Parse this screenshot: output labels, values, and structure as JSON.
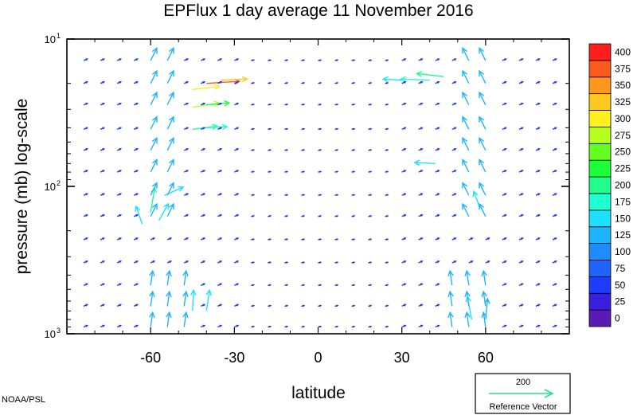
{
  "chart_data": {
    "type": "vector-field",
    "title": "EPFlux  1 day average  11 November  2016",
    "xlabel": "latitude",
    "ylabel": "pressure (mb)  log-scale",
    "xlim": [
      -90,
      90
    ],
    "ylim_mb": [
      1000,
      10
    ],
    "y_scale": "log",
    "x_ticks": [
      {
        "value": -60,
        "label": "-60"
      },
      {
        "value": -30,
        "label": "-30"
      },
      {
        "value": 0,
        "label": "0"
      },
      {
        "value": 30,
        "label": "30"
      },
      {
        "value": 60,
        "label": "60"
      }
    ],
    "y_ticks": [
      {
        "value": 10,
        "base": "10",
        "exp": "1"
      },
      {
        "value": 100,
        "base": "10",
        "exp": "2"
      },
      {
        "value": 1000,
        "base": "10",
        "exp": "3"
      }
    ],
    "colorbar": {
      "levels": [
        "0",
        "25",
        "50",
        "75",
        "100",
        "125",
        "150",
        "175",
        "200",
        "225",
        "250",
        "275",
        "300",
        "325",
        "350",
        "375",
        "400"
      ],
      "colors": [
        "#5a1ab4",
        "#3a1ee0",
        "#1e3cff",
        "#1e64ff",
        "#1e8cff",
        "#1eb4ff",
        "#1ee1ff",
        "#1effd2",
        "#1eff8c",
        "#1eff3c",
        "#64ff1e",
        "#b4ff1e",
        "#fff01e",
        "#ffc81e",
        "#ff961e",
        "#ff5a1e",
        "#ff1e1e"
      ]
    },
    "reference_vector": {
      "magnitude": "200",
      "label": "Reference Vector"
    },
    "credit": "NOAA/PSL",
    "vectors": [
      {
        "lat": -60,
        "p": 150,
        "u": 0.4,
        "v": 2.4,
        "mag": 200
      },
      {
        "lat": -63,
        "p": 180,
        "u": -0.6,
        "v": 1.7,
        "mag": 150
      },
      {
        "lat": -57,
        "p": 170,
        "u": 0.9,
        "v": 1.6,
        "mag": 150
      },
      {
        "lat": -55,
        "p": 115,
        "u": 1.8,
        "v": 0.8,
        "mag": 150
      },
      {
        "lat": -45,
        "p": 22,
        "u": 2.6,
        "v": 0.3,
        "mag": 300
      },
      {
        "lat": -40,
        "p": 20,
        "u": 3.2,
        "v": 0.2,
        "mag": 375
      },
      {
        "lat": -35,
        "p": 19,
        "u": 2.6,
        "v": 0.1,
        "mag": 325
      },
      {
        "lat": -45,
        "p": 29,
        "u": 2.6,
        "v": 0.4,
        "mag": 275
      },
      {
        "lat": -40,
        "p": 28,
        "u": 2.2,
        "v": 0.2,
        "mag": 225
      },
      {
        "lat": -45,
        "p": 41,
        "u": 2.4,
        "v": 0.3,
        "mag": 200
      },
      {
        "lat": -40,
        "p": 40,
        "u": 2.0,
        "v": 0.1,
        "mag": 175
      },
      {
        "lat": 40,
        "p": 19,
        "u": -2.8,
        "v": 0.1,
        "mag": 175
      },
      {
        "lat": 45,
        "p": 18,
        "u": -2.6,
        "v": 0.3,
        "mag": 200
      },
      {
        "lat": 30,
        "p": 19,
        "u": -1.8,
        "v": 0.1,
        "mag": 150
      },
      {
        "lat": 58,
        "p": 140,
        "u": -0.6,
        "v": 1.6,
        "mag": 150
      },
      {
        "lat": 42,
        "p": 70,
        "u": -2.0,
        "v": 0.1,
        "mag": 150
      },
      {
        "lat": -45,
        "p": 700,
        "u": 0.1,
        "v": 2.0,
        "mag": 150
      },
      {
        "lat": -40,
        "p": 700,
        "u": 0.3,
        "v": 2.0,
        "mag": 150
      },
      {
        "lat": 55,
        "p": 800,
        "u": -0.4,
        "v": 2.2,
        "mag": 150
      },
      {
        "lat": 60,
        "p": 800,
        "u": 0.2,
        "v": 2.0,
        "mag": 125
      }
    ]
  }
}
